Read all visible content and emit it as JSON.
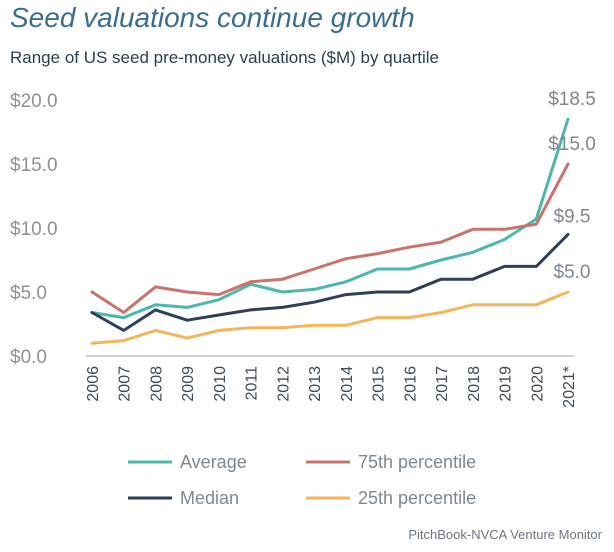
{
  "header": {
    "title": "Seed valuations continue growth",
    "subtitle": "Range of US seed pre-money valuations ($M) by quartile"
  },
  "footer": {
    "source": "PitchBook-NVCA Venture Monitor"
  },
  "chart_data": {
    "type": "line",
    "title": "Seed valuations continue growth",
    "subtitle": "Range of US seed pre-money valuations ($M) by quartile",
    "xlabel": "",
    "ylabel": "",
    "ylim": [
      0,
      20
    ],
    "yticks": [
      "$0.0",
      "$5.0",
      "$10.0",
      "$15.0",
      "$20.0"
    ],
    "x": [
      "2006",
      "2007",
      "2008",
      "2009",
      "2010",
      "2011",
      "2012",
      "2013",
      "2014",
      "2015",
      "2016",
      "2017",
      "2018",
      "2019",
      "2020",
      "2021*"
    ],
    "grid": false,
    "legend": "bottom",
    "series": [
      {
        "name": "Average",
        "color": "#4bb8a9",
        "values": [
          3.4,
          3.0,
          4.0,
          3.8,
          4.4,
          5.6,
          5.0,
          5.2,
          5.8,
          6.8,
          6.8,
          7.5,
          8.1,
          9.1,
          10.7,
          18.5
        ],
        "end_label": "$18.5"
      },
      {
        "name": "75th percentile",
        "color": "#c9736c",
        "values": [
          5.0,
          3.4,
          5.4,
          5.0,
          4.8,
          5.8,
          6.0,
          6.8,
          7.6,
          8.0,
          8.5,
          8.9,
          9.9,
          9.9,
          10.3,
          15.0
        ],
        "end_label": "$15.0"
      },
      {
        "name": "Median",
        "color": "#2f3e5b",
        "values": [
          3.4,
          2.0,
          3.6,
          2.8,
          3.2,
          3.6,
          3.8,
          4.2,
          4.8,
          5.0,
          5.0,
          6.0,
          6.0,
          7.0,
          7.0,
          9.5
        ],
        "end_label": "$9.5"
      },
      {
        "name": "25th percentile",
        "color": "#f4b65c",
        "values": [
          1.0,
          1.2,
          2.0,
          1.4,
          2.0,
          2.2,
          2.2,
          2.4,
          2.4,
          3.0,
          3.0,
          3.4,
          4.0,
          4.0,
          4.0,
          5.0
        ],
        "end_label": "$5.0"
      }
    ]
  }
}
